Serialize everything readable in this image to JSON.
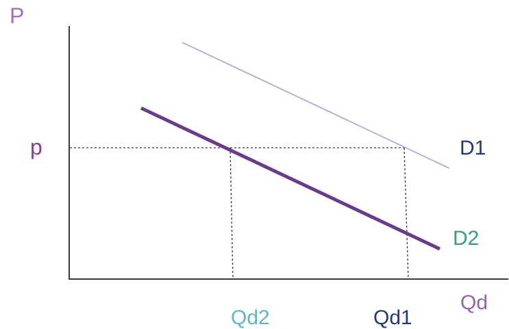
{
  "labels": {
    "y_axis": "P",
    "x_axis": "Qd",
    "price": "p",
    "demand1": "D1",
    "demand2": "D2",
    "qd2": "Qd2",
    "qd1": "Qd1"
  },
  "colors": {
    "axis": "#3a3a3a",
    "y_axis_label": "#a070c0",
    "x_axis_label": "#9a60b8",
    "price_label": "#8a3aa0",
    "d1_line": "#b8aed8",
    "d2_line": "#6a3a8c",
    "d1_label": "#203a78",
    "d2_label": "#30a080",
    "qd2_label": "#5ab8cc",
    "qd1_label": "#203a78",
    "guide": "#333333"
  }
}
